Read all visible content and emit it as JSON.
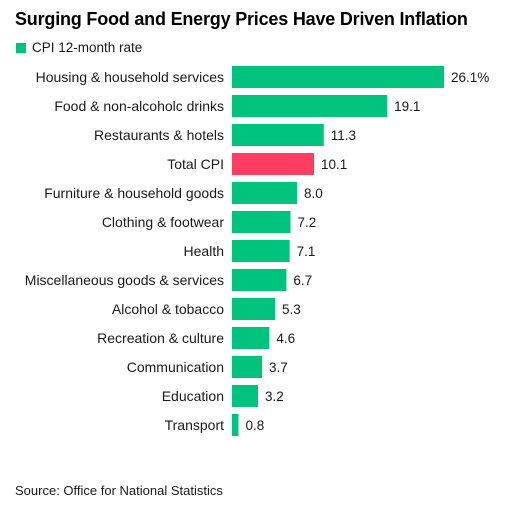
{
  "chart_data": {
    "type": "bar",
    "orientation": "horizontal",
    "title": "Surging Food and Energy Prices Have Driven Inflation",
    "legend": [
      {
        "label": "CPI 12-month rate",
        "color": "#00C47E"
      }
    ],
    "categories": [
      "Housing & household services",
      "Food & non-alcoholc drinks",
      "Restaurants & hotels",
      "Total CPI",
      "Furniture & household goods",
      "Clothing & footwear",
      "Health",
      "Miscellaneous goods & services",
      "Alcohol & tobacco",
      "Recreation & culture",
      "Communication",
      "Education",
      "Transport"
    ],
    "values": [
      26.1,
      19.1,
      11.3,
      10.1,
      8.0,
      7.2,
      7.1,
      6.7,
      5.3,
      4.6,
      3.7,
      3.2,
      0.8
    ],
    "value_labels": [
      "26.1%",
      "19.1",
      "11.3",
      "10.1",
      "8.0",
      "7.2",
      "7.1",
      "6.7",
      "5.3",
      "4.6",
      "3.7",
      "3.2",
      "0.8"
    ],
    "colors": {
      "default": "#00C47E",
      "highlight": "#FF3D63"
    },
    "highlight_category": "Total CPI",
    "xlim": [
      0,
      26.1
    ],
    "grid": false,
    "legend_position": "top-left"
  },
  "source": "Source: Office for National Statistics"
}
